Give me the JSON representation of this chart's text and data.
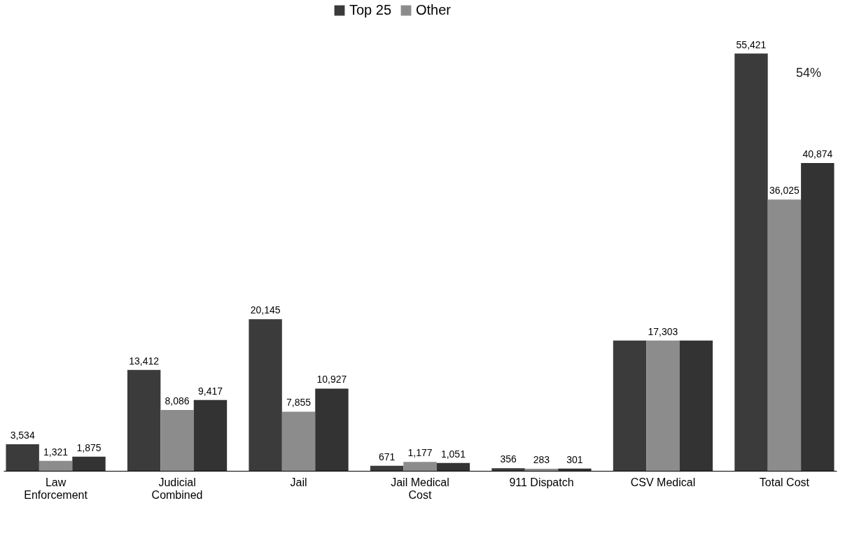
{
  "chart_data": {
    "type": "bar",
    "categories": [
      "Law Enforcement",
      "Judicial Combined",
      "Jail",
      "Jail Medical Cost",
      "911 Dispatch",
      "CSV Medical",
      "Total Cost"
    ],
    "series": [
      {
        "name": "Top 25",
        "color": "#3b3b3b",
        "values": [
          3534,
          13412,
          20145,
          671,
          356,
          17303,
          55421
        ],
        "value_labels": [
          "3,534",
          "13,412",
          "20,145",
          "671",
          "356",
          null,
          "55,421"
        ]
      },
      {
        "name": "Other",
        "color": "#8c8c8c",
        "values": [
          1321,
          8086,
          7855,
          1177,
          283,
          17303,
          36025
        ],
        "value_labels": [
          "1,321",
          "8,086",
          "7,855",
          "1,177",
          "283",
          "17,303",
          "36,025"
        ]
      },
      {
        "color": "#333333",
        "values": [
          1875,
          9417,
          10927,
          1051,
          301,
          17303,
          40874
        ],
        "value_labels": [
          "1,875",
          "9,417",
          "10,927",
          "1,051",
          "301",
          null,
          "40,874"
        ]
      }
    ],
    "annotations": [
      "54%"
    ],
    "legend": "top"
  }
}
